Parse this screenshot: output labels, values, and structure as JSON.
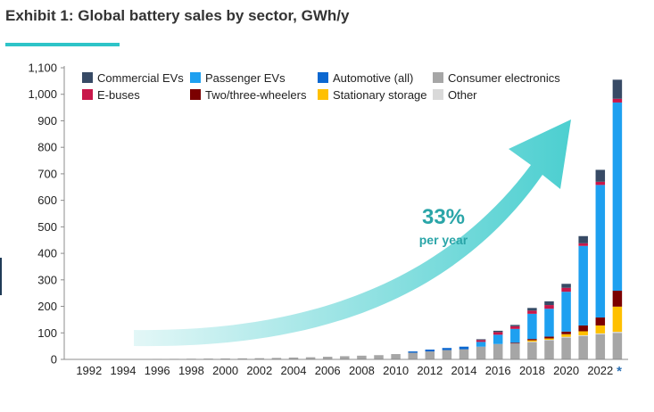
{
  "title": "Exhibit 1: Global battery sales by sector, GWh/y",
  "annotation": {
    "value": "33%",
    "label": "per year"
  },
  "marker": "*",
  "colors": {
    "accent": "#2ec4c8",
    "arrow_start": "#e3f7f7",
    "arrow_end": "#4ccfd0",
    "annotation_text": "#2aa5a8",
    "axis_text": "#222222",
    "marker": "#2a6fb4"
  },
  "chart_data": {
    "type": "bar",
    "stacked": true,
    "title": "Exhibit 1: Global battery sales by sector, GWh/y",
    "xlabel": "",
    "ylabel": "",
    "ylim": [
      0,
      1100
    ],
    "yticks": [
      0,
      100,
      200,
      300,
      400,
      500,
      600,
      700,
      800,
      900,
      1000,
      1100
    ],
    "grid": false,
    "legend_position": "top",
    "categories": [
      "1991",
      "1992",
      "1993",
      "1994",
      "1995",
      "1996",
      "1997",
      "1998",
      "1999",
      "2000",
      "2001",
      "2002",
      "2003",
      "2004",
      "2005",
      "2006",
      "2007",
      "2008",
      "2009",
      "2010",
      "2011",
      "2012",
      "2013",
      "2014",
      "2015",
      "2016",
      "2017",
      "2018",
      "2019",
      "2020",
      "2021",
      "2022",
      "2023"
    ],
    "tick_labels": [
      "1992",
      "1994",
      "1996",
      "1998",
      "2000",
      "2002",
      "2004",
      "2006",
      "2008",
      "2010",
      "2012",
      "2014",
      "2016",
      "2018",
      "2020",
      "2022"
    ],
    "series": [
      {
        "name": "Consumer electronics",
        "color": "#a6a6a6",
        "values": [
          0.5,
          0.7,
          1,
          1.2,
          1.5,
          1.8,
          2,
          2.5,
          3,
          3.5,
          4,
          4.5,
          5.5,
          7,
          8,
          10,
          12,
          14,
          16,
          20,
          25,
          30,
          35,
          38,
          48,
          58,
          60,
          65,
          72,
          82,
          88,
          95,
          100
        ]
      },
      {
        "name": "Other",
        "color": "#d9d9d9",
        "values": [
          0,
          0,
          0,
          0,
          0,
          0,
          0,
          0,
          0,
          0,
          0,
          0,
          0,
          0,
          0,
          0,
          0,
          0,
          0,
          0,
          0,
          0,
          0,
          0,
          0,
          0,
          0,
          2,
          2,
          3,
          3,
          3,
          4
        ]
      },
      {
        "name": "Stationary storage",
        "color": "#ffc000",
        "values": [
          0,
          0,
          0,
          0,
          0,
          0,
          0,
          0,
          0,
          0,
          0,
          0,
          0,
          0,
          0,
          0,
          0,
          0,
          0,
          0,
          0,
          0,
          0,
          0,
          0,
          0,
          0,
          5,
          5,
          10,
          15,
          30,
          95
        ]
      },
      {
        "name": "Two/three-wheelers",
        "color": "#7b0000",
        "values": [
          0,
          0,
          0,
          0,
          0,
          0,
          0,
          0,
          0,
          0,
          0,
          0,
          0,
          0,
          0,
          0,
          0,
          0,
          0,
          0,
          0,
          0,
          0,
          0,
          0,
          0,
          3,
          5,
          7,
          10,
          22,
          30,
          60
        ]
      },
      {
        "name": "Automotive (all)",
        "color": "#0b67d0",
        "values": [
          0,
          0,
          0,
          0,
          0,
          0,
          0,
          0,
          0,
          0,
          0,
          0,
          0,
          0,
          0,
          0,
          0,
          0,
          0,
          0,
          5,
          7,
          8,
          10,
          0,
          0,
          0,
          0,
          0,
          0,
          0,
          0,
          0
        ]
      },
      {
        "name": "Passenger EVs",
        "color": "#1ea0f0",
        "values": [
          0,
          0,
          0,
          0,
          0,
          0,
          0,
          0,
          0,
          0,
          0,
          0,
          0,
          0,
          0,
          0,
          0,
          0,
          0,
          0,
          0,
          0,
          0,
          0,
          18,
          35,
          52,
          95,
          105,
          150,
          300,
          500,
          710
        ]
      },
      {
        "name": "E-buses",
        "color": "#c8174a",
        "values": [
          0,
          0,
          0,
          0,
          0,
          0,
          0,
          0,
          0,
          0,
          0,
          0,
          0,
          0,
          0,
          0,
          0,
          0,
          0,
          0,
          0,
          0,
          0,
          0,
          7,
          10,
          10,
          12,
          14,
          15,
          10,
          12,
          14
        ]
      },
      {
        "name": "Commercial EVs",
        "color": "#374a65",
        "values": [
          0,
          0,
          0,
          0,
          0,
          0,
          0,
          0,
          0,
          0,
          0,
          0,
          0,
          0,
          0,
          0,
          0,
          0,
          0,
          0,
          0,
          0,
          0,
          0,
          3,
          5,
          5,
          10,
          14,
          15,
          27,
          45,
          72
        ]
      }
    ],
    "legend_order": [
      "Commercial EVs",
      "Passenger EVs",
      "Automotive (all)",
      "Consumer electronics",
      "E-buses",
      "Two/three-wheelers",
      "Stationary storage",
      "Other"
    ]
  }
}
